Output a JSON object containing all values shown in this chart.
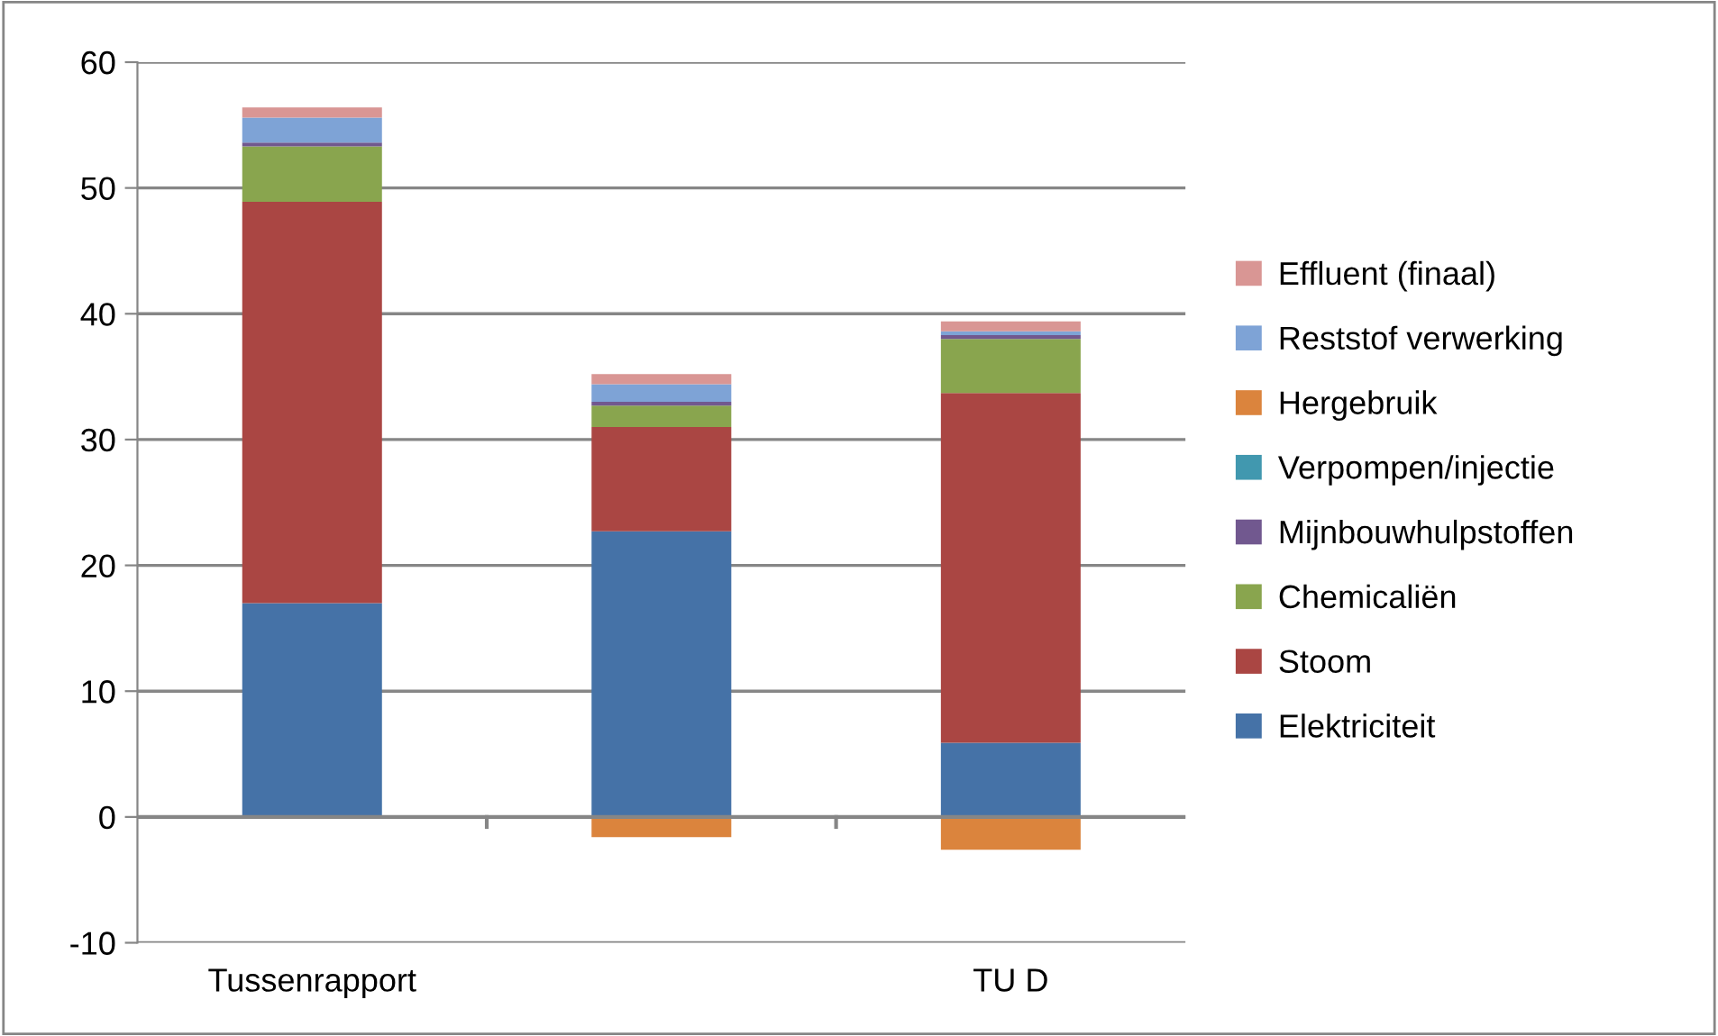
{
  "chart_data": {
    "type": "bar",
    "stacked": true,
    "categories": [
      "Tussenrapport",
      null,
      "TU D"
    ],
    "series": [
      {
        "name": "Elektriciteit",
        "color": "#4572a7",
        "values": [
          17.0,
          22.7,
          5.9
        ]
      },
      {
        "name": "Stoom",
        "color": "#aa4643",
        "values": [
          31.9,
          8.3,
          27.8
        ]
      },
      {
        "name": "Chemicaliën",
        "color": "#89a54e",
        "values": [
          4.4,
          1.7,
          4.3
        ]
      },
      {
        "name": "Mijnbouwhulpstoffen",
        "color": "#71588f",
        "values": [
          0.3,
          0.3,
          0.3
        ]
      },
      {
        "name": "Verpompen/injectie",
        "color": "#4198af",
        "values": [
          0,
          0,
          0
        ]
      },
      {
        "name": "Hergebruik",
        "color": "#db843d",
        "values": [
          0,
          -1.6,
          -2.6
        ]
      },
      {
        "name": "Reststof verwerking",
        "color": "#7ea3d6",
        "values": [
          2.0,
          1.4,
          0.3
        ]
      },
      {
        "name": "Effluent (finaal)",
        "color": "#d99694",
        "values": [
          0.8,
          0.8,
          0.8
        ]
      }
    ],
    "ylim": [
      -10,
      60
    ],
    "yticks": [
      -10,
      0,
      10,
      20,
      30,
      40,
      50,
      60
    ],
    "grid": "y",
    "legend": "right"
  }
}
